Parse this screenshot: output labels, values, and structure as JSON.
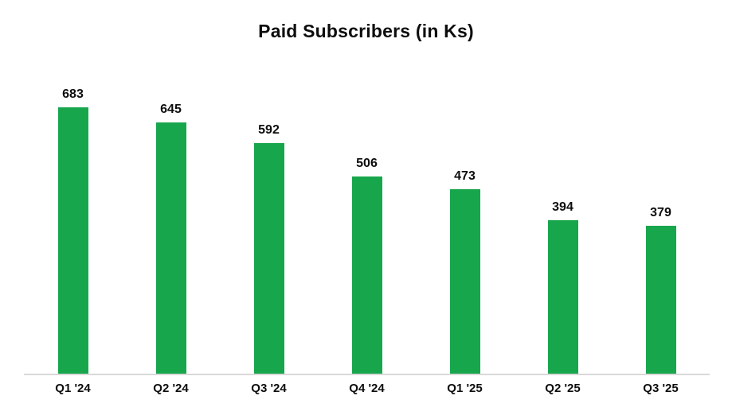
{
  "chart_data": {
    "type": "bar",
    "title": "Paid Subscribers (in Ks)",
    "categories": [
      "Q1 '24",
      "Q2 '24",
      "Q3 '24",
      "Q4 '24",
      "Q1 '25",
      "Q2 '25",
      "Q3 '25"
    ],
    "values": [
      683,
      645,
      592,
      506,
      473,
      394,
      379
    ],
    "xlabel": "",
    "ylabel": "",
    "ylim": [
      0,
      700
    ],
    "grid": false,
    "legend": "none",
    "bar_color": "#18A64D",
    "axis_line_color": "#d9d9d9",
    "text_color": "#0d0d0d"
  }
}
